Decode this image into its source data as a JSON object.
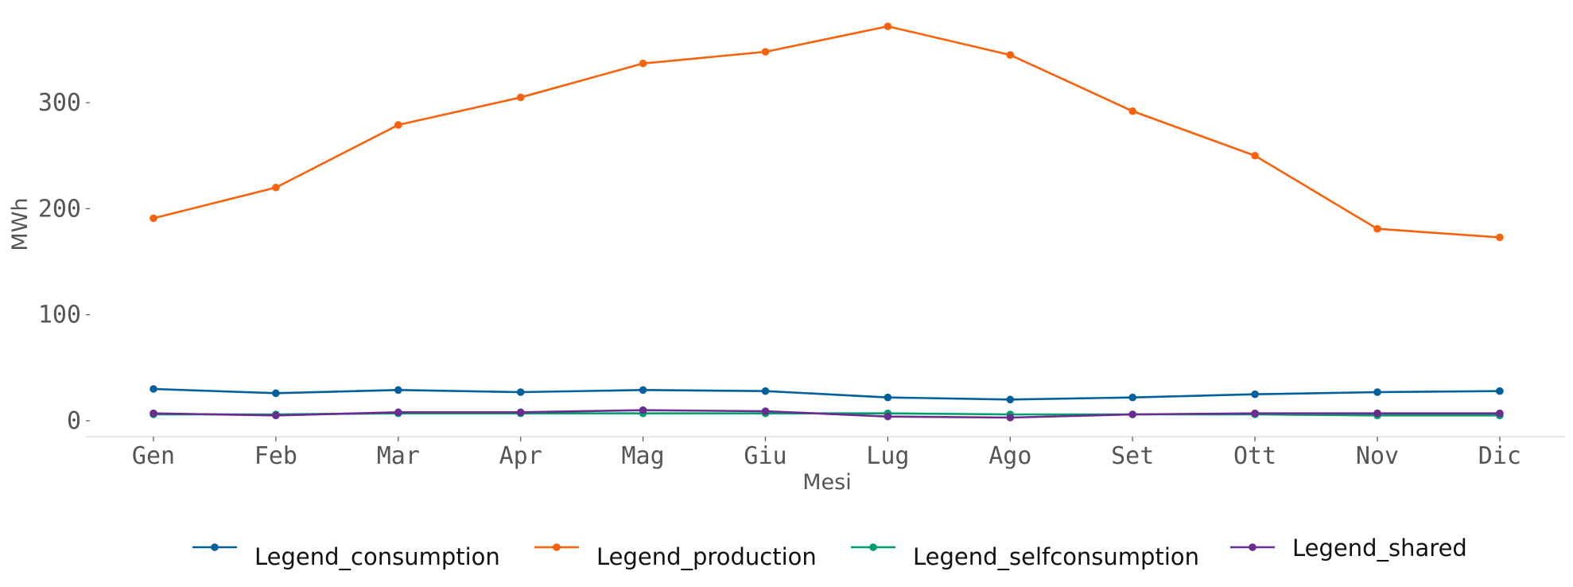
{
  "chart_data": {
    "type": "line",
    "title": "",
    "xlabel": "Mesi",
    "ylabel": "MWh",
    "categories": [
      "Gen",
      "Feb",
      "Mar",
      "Apr",
      "Mag",
      "Giu",
      "Lug",
      "Ago",
      "Set",
      "Ott",
      "Nov",
      "Dic"
    ],
    "yticks": [
      0,
      100,
      200,
      300
    ],
    "ylim": [
      -15,
      375
    ],
    "grid": false,
    "legend_position": "bottom",
    "series": [
      {
        "name": "Legend_consumption",
        "color": "#00609c",
        "values": [
          30,
          26,
          29,
          27,
          29,
          28,
          22,
          20,
          22,
          25,
          27,
          28
        ]
      },
      {
        "name": "Legend_production",
        "color": "#f7620b",
        "values": [
          191,
          220,
          279,
          305,
          337,
          348,
          372,
          345,
          292,
          250,
          181,
          173
        ]
      },
      {
        "name": "Legend_selfconsumption",
        "color": "#009e6e",
        "values": [
          6,
          6,
          7,
          7,
          7,
          7,
          7,
          6,
          6,
          6,
          5,
          5
        ]
      },
      {
        "name": "Legend_shared",
        "color": "#6a2c91",
        "values": [
          7,
          5,
          8,
          8,
          10,
          9,
          4,
          3,
          6,
          7,
          7,
          7
        ]
      }
    ]
  }
}
